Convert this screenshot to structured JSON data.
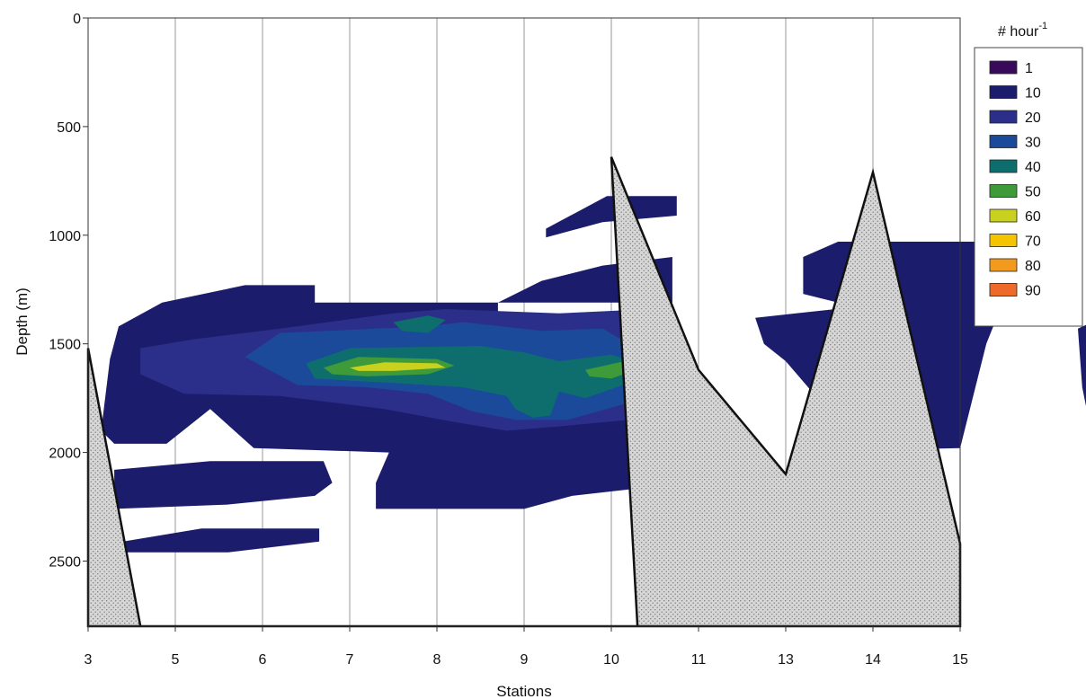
{
  "chart_data": {
    "type": "heatmap",
    "xlabel": "Stations",
    "ylabel": "Depth (m)",
    "ylim": [
      0,
      2800
    ],
    "y_inverted": true,
    "y_ticks": [
      0,
      500,
      1000,
      1500,
      2000,
      2500
    ],
    "stations": [
      "3",
      "5",
      "6",
      "7",
      "8",
      "9",
      "10",
      "11",
      "13",
      "14",
      "15"
    ],
    "grid": "vertical lines at stations",
    "legend": {
      "title_base": "# hour",
      "title_exponent": "-1",
      "placement": "right",
      "levels": [
        {
          "label": "1",
          "color": "#3a0a5a"
        },
        {
          "label": "10",
          "color": "#1c1c6c"
        },
        {
          "label": "20",
          "color": "#2c2f8a"
        },
        {
          "label": "30",
          "color": "#1b4a9a"
        },
        {
          "label": "40",
          "color": "#0e6e6e"
        },
        {
          "label": "50",
          "color": "#3f9a3a"
        },
        {
          "label": "60",
          "color": "#c8d21e"
        },
        {
          "label": "70",
          "color": "#f5c400"
        },
        {
          "label": "80",
          "color": "#f29a1e"
        },
        {
          "label": "90",
          "color": "#ee6a2a"
        }
      ]
    },
    "seafloor_depth": [
      {
        "station": 3,
        "depth": 1520
      },
      {
        "station": 3.6,
        "depth": 2800
      },
      {
        "station": 9.3,
        "depth": 2800
      },
      {
        "station": 10,
        "depth": 640
      },
      {
        "station": 11,
        "depth": 1620
      },
      {
        "station": 13,
        "depth": 2100
      },
      {
        "station": 14,
        "depth": 710
      },
      {
        "station": 15,
        "depth": 2420
      }
    ],
    "contours": [
      {
        "level": "10",
        "polygons": [
          [
            [
              3.15,
              1900
            ],
            [
              3.25,
              1570
            ],
            [
              3.35,
              1420
            ],
            [
              3.85,
              1310
            ],
            [
              4.8,
              1230
            ],
            [
              5.6,
              1230
            ],
            [
              5.6,
              1310
            ],
            [
              9.7,
              1310
            ],
            [
              9.7,
              1100
            ],
            [
              8.9,
              1140
            ],
            [
              8.2,
              1210
            ],
            [
              7.7,
              1310
            ],
            [
              7.7,
              1420
            ],
            [
              9.7,
              1420
            ],
            [
              9.7,
              1870
            ],
            [
              9.7,
              1990
            ],
            [
              9.2,
              2170
            ],
            [
              8.55,
              2200
            ],
            [
              8.0,
              2260
            ],
            [
              6.3,
              2260
            ],
            [
              6.3,
              2140
            ],
            [
              6.45,
              2000
            ],
            [
              4.9,
              1980
            ],
            [
              4.4,
              1800
            ],
            [
              3.9,
              1960
            ],
            [
              3.3,
              1960
            ]
          ],
          [
            [
              5.9,
              1960
            ],
            [
              6.6,
              1900
            ],
            [
              7.3,
              1890
            ],
            [
              7.8,
              1980
            ],
            [
              6.0,
              1990
            ]
          ],
          [
            [
              3.3,
              2080
            ],
            [
              4.4,
              2040
            ],
            [
              5.7,
              2040
            ],
            [
              5.8,
              2140
            ],
            [
              5.6,
              2200
            ],
            [
              4.6,
              2240
            ],
            [
              3.3,
              2260
            ]
          ],
          [
            [
              3.4,
              2410
            ],
            [
              4.3,
              2350
            ],
            [
              5.65,
              2350
            ],
            [
              5.65,
              2410
            ],
            [
              4.6,
              2460
            ],
            [
              3.45,
              2460
            ]
          ],
          [
            [
              8.25,
              970
            ],
            [
              8.95,
              820
            ],
            [
              9.75,
              820
            ],
            [
              9.75,
              910
            ],
            [
              8.9,
              940
            ],
            [
              8.25,
              1010
            ]
          ],
          [
            [
              10.65,
              1380
            ],
            [
              11.8,
              1330
            ],
            [
              11.2,
              1270
            ],
            [
              11.2,
              1100
            ],
            [
              11.6,
              1030
            ],
            [
              13.0,
              1030
            ],
            [
              13.35,
              1030
            ],
            [
              13.6,
              1200
            ],
            [
              13.3,
              1500
            ],
            [
              13.0,
              1980
            ],
            [
              11.8,
              1990
            ],
            [
              11.3,
              1720
            ],
            [
              11.0,
              1580
            ],
            [
              10.75,
              1500
            ]
          ],
          [
            [
              14.4,
              1700
            ],
            [
              14.35,
              1430
            ],
            [
              15,
              1310
            ],
            [
              15,
              1830
            ],
            [
              14.5,
              1900
            ]
          ],
          [
            [
              14.9,
              2000
            ],
            [
              15,
              1990
            ],
            [
              15,
              2320
            ],
            [
              14.9,
              2320
            ]
          ]
        ]
      },
      {
        "level": "20",
        "polygons": [
          [
            [
              3.6,
              1520
            ],
            [
              4.2,
              1480
            ],
            [
              5.2,
              1430
            ],
            [
              6.5,
              1360
            ],
            [
              7.1,
              1340
            ],
            [
              8.4,
              1360
            ],
            [
              9.45,
              1340
            ],
            [
              9.6,
              1500
            ],
            [
              9.6,
              1800
            ],
            [
              9.2,
              1850
            ],
            [
              8.4,
              1880
            ],
            [
              7.8,
              1900
            ],
            [
              7.2,
              1860
            ],
            [
              6.4,
              1800
            ],
            [
              5.2,
              1740
            ],
            [
              4.1,
              1730
            ],
            [
              3.6,
              1640
            ]
          ],
          [
            [
              14.6,
              1600
            ],
            [
              15,
              1420
            ],
            [
              15,
              1800
            ],
            [
              14.6,
              1780
            ]
          ]
        ]
      },
      {
        "level": "30",
        "polygons": [
          [
            [
              4.8,
              1560
            ],
            [
              5.2,
              1450
            ],
            [
              6.9,
              1420
            ],
            [
              7.3,
              1400
            ],
            [
              8.2,
              1440
            ],
            [
              8.9,
              1430
            ],
            [
              9.2,
              1500
            ],
            [
              9.4,
              1610
            ],
            [
              9.3,
              1760
            ],
            [
              8.5,
              1850
            ],
            [
              7.9,
              1850
            ],
            [
              7.4,
              1810
            ],
            [
              6.9,
              1730
            ],
            [
              6.2,
              1700
            ],
            [
              5.4,
              1690
            ]
          ],
          [
            [
              14.7,
              1550
            ],
            [
              15,
              1470
            ],
            [
              15,
              1770
            ],
            [
              14.7,
              1740
            ]
          ]
        ]
      },
      {
        "level": "40",
        "polygons": [
          [
            [
              5.5,
              1590
            ],
            [
              6.0,
              1520
            ],
            [
              7.5,
              1510
            ],
            [
              8.0,
              1540
            ],
            [
              8.4,
              1580
            ],
            [
              9.0,
              1550
            ],
            [
              9.4,
              1600
            ],
            [
              9.2,
              1680
            ],
            [
              8.7,
              1750
            ],
            [
              8.4,
              1720
            ],
            [
              8.3,
              1830
            ],
            [
              8.1,
              1840
            ],
            [
              7.9,
              1800
            ],
            [
              7.8,
              1740
            ],
            [
              7.3,
              1700
            ],
            [
              6.5,
              1680
            ],
            [
              5.6,
              1660
            ]
          ],
          [
            [
              6.5,
              1400
            ],
            [
              6.9,
              1370
            ],
            [
              7.1,
              1390
            ],
            [
              6.9,
              1450
            ],
            [
              6.6,
              1440
            ]
          ],
          [
            [
              14.8,
              1550
            ],
            [
              15,
              1510
            ],
            [
              15,
              1740
            ],
            [
              14.8,
              1720
            ]
          ]
        ]
      },
      {
        "level": "50",
        "polygons": [
          [
            [
              5.7,
              1610
            ],
            [
              6.1,
              1560
            ],
            [
              7.0,
              1570
            ],
            [
              7.2,
              1600
            ],
            [
              6.9,
              1640
            ],
            [
              6.2,
              1650
            ],
            [
              5.8,
              1640
            ]
          ],
          [
            [
              8.7,
              1620
            ],
            [
              9.15,
              1580
            ],
            [
              9.35,
              1610
            ],
            [
              9.0,
              1660
            ],
            [
              8.75,
              1650
            ]
          ]
        ]
      },
      {
        "level": "60",
        "polygons": [
          [
            [
              6.0,
              1610
            ],
            [
              6.4,
              1585
            ],
            [
              7.0,
              1590
            ],
            [
              7.1,
              1610
            ],
            [
              6.5,
              1625
            ],
            [
              6.1,
              1625
            ]
          ],
          [
            [
              14.85,
              1580
            ],
            [
              15,
              1560
            ],
            [
              15,
              1720
            ],
            [
              14.85,
              1700
            ]
          ]
        ]
      },
      {
        "level": "70",
        "polygons": [
          [
            [
              14.9,
              1620
            ],
            [
              15,
              1600
            ],
            [
              15,
              1720
            ],
            [
              14.9,
              1700
            ]
          ]
        ]
      },
      {
        "level": "80",
        "polygons": [
          [
            [
              14.95,
              1640
            ],
            [
              15,
              1630
            ],
            [
              15,
              1720
            ],
            [
              14.95,
              1700
            ]
          ]
        ]
      },
      {
        "level": "90",
        "polygons": [
          [
            [
              14.97,
              1670
            ],
            [
              15,
              1660
            ],
            [
              15,
              1710
            ],
            [
              14.97,
              1705
            ]
          ]
        ]
      }
    ]
  }
}
